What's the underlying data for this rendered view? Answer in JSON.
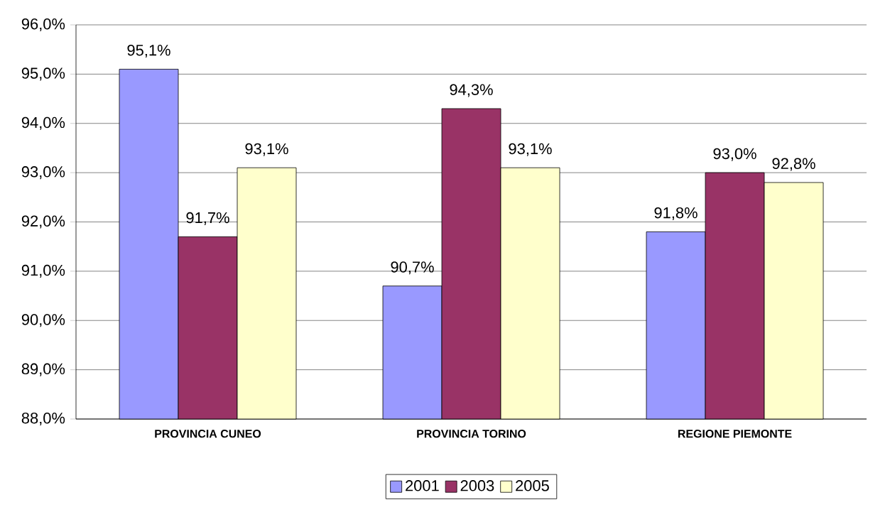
{
  "chart_data": {
    "type": "bar",
    "categories": [
      "PROVINCIA CUNEO",
      "PROVINCIA TORINO",
      "REGIONE PIEMONTE"
    ],
    "series": [
      {
        "name": "2001",
        "color": "#9999ff",
        "values": [
          95.1,
          90.7,
          91.8
        ],
        "value_labels": [
          "95,1%",
          "90,7%",
          "91,8%"
        ]
      },
      {
        "name": "2003",
        "color": "#993366",
        "values": [
          91.7,
          94.3,
          93.0
        ],
        "value_labels": [
          "91,7%",
          "94,3%",
          "93,0%"
        ]
      },
      {
        "name": "2005",
        "color": "#ffffcc",
        "values": [
          93.1,
          93.1,
          92.8
        ],
        "value_labels": [
          "93,1%",
          "93,1%",
          "92,8%"
        ]
      }
    ],
    "ylim": [
      88,
      96
    ],
    "yticks": [
      {
        "value": 88,
        "label": "88,0%"
      },
      {
        "value": 89,
        "label": "89,0%"
      },
      {
        "value": 90,
        "label": "90,0%"
      },
      {
        "value": 91,
        "label": "91,0%"
      },
      {
        "value": 92,
        "label": "92,0%"
      },
      {
        "value": 93,
        "label": "93,0%"
      },
      {
        "value": 94,
        "label": "94,0%"
      },
      {
        "value": 95,
        "label": "95,0%"
      },
      {
        "value": 96,
        "label": "96,0%"
      }
    ],
    "grid": "y",
    "legend": "bottom"
  }
}
